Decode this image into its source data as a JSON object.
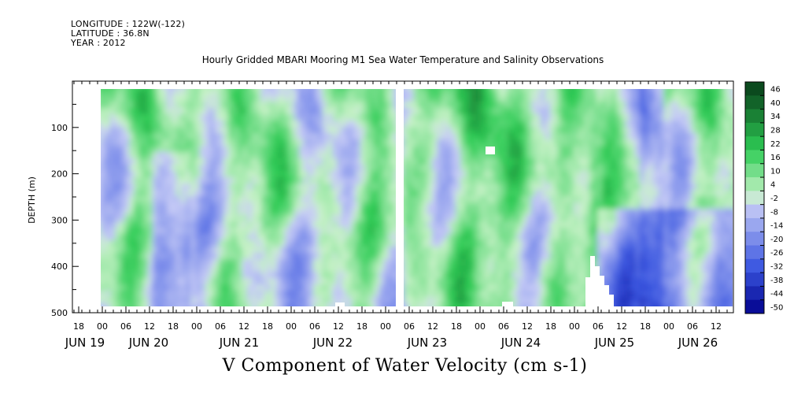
{
  "header": {
    "longitude": "LONGITUDE : 122W(-122)",
    "latitude": "LATITUDE : 36.8N",
    "year": "YEAR : 2012"
  },
  "chart_data": {
    "type": "heatmap",
    "title": "Hourly Gridded MBARI Mooring M1 Sea Water Temperature and Salinity Observations",
    "xlabel": "V Component of Water Velocity (cm s-1)",
    "ylabel": "DEPTH (m)",
    "ylim": [
      500,
      0
    ],
    "y_ticks": [
      100,
      200,
      300,
      400,
      500
    ],
    "x_hour_ticks": [
      "18",
      "00",
      "06",
      "12",
      "18",
      "00",
      "06",
      "12",
      "18",
      "00",
      "06",
      "12",
      "18",
      "00",
      "06",
      "12",
      "18",
      "00",
      "06",
      "12",
      "18",
      "00",
      "06",
      "12",
      "18",
      "00",
      "06",
      "12"
    ],
    "x_day_labels": [
      "JUN 19",
      "JUN 20",
      "JUN 21",
      "JUN 22",
      "JUN 23",
      "JUN 24",
      "JUN 25",
      "JUN 26"
    ],
    "colorbar_levels": [
      "46",
      "40",
      "34",
      "28",
      "22",
      "16",
      "10",
      "4",
      "-2",
      "-8",
      "-14",
      "-20",
      "-26",
      "-32",
      "-38",
      "-44",
      "-50"
    ],
    "colormap": {
      "negative_min": "#00008b",
      "negative_mid": "#3a56e0",
      "negative_light": "#c8cdf6",
      "positive_light": "#c8f2c8",
      "positive_mid": "#2ecc55",
      "positive_max": "#0b4a1e"
    },
    "data_gap": "JUN 22 to JUN 23",
    "grid": false
  }
}
